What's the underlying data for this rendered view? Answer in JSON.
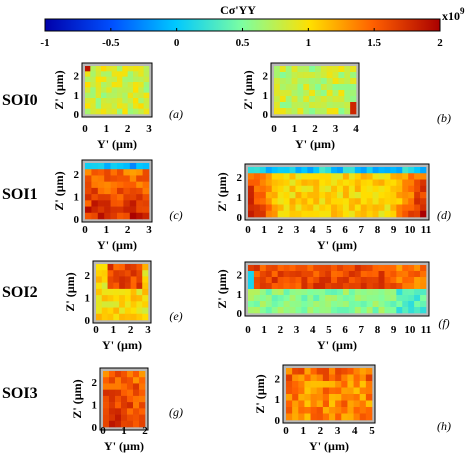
{
  "colorbar": {
    "label": "Cσ'YY",
    "exponent": "x10",
    "exponent_power": "9",
    "ticks": [
      "-1",
      "-0.5",
      "0",
      "0.5",
      "1",
      "1.5",
      "2"
    ],
    "tick_values": [
      -1,
      -0.5,
      0,
      0.5,
      1,
      1.5,
      2
    ],
    "range": [
      -1,
      2
    ],
    "colormap": [
      "#0000aa",
      "#0050ff",
      "#00c8ff",
      "#7dffa0",
      "#ffe000",
      "#ff6000",
      "#aa0000"
    ]
  },
  "rows": [
    "SOI0",
    "SOI1",
    "SOI2",
    "SOI3"
  ],
  "chart_data": [
    {
      "type": "heatmap",
      "panel": "(a)",
      "row": "SOI0",
      "xlabel": "Y' (µm)",
      "ylabel": "Z' (µm)",
      "xticks": [
        "0",
        "1",
        "2",
        "3"
      ],
      "yticks": [
        "0",
        "1",
        "2"
      ],
      "xlim": [
        0,
        3
      ],
      "ylim": [
        0,
        2.5
      ],
      "description": "Mostly uniform stress ~0.7-1.0, one high-stress cell at top-left corner",
      "value_range": [
        0.6,
        1.9
      ]
    },
    {
      "type": "heatmap",
      "panel": "(b)",
      "row": "SOI0",
      "xlabel": "Y' (µm)",
      "ylabel": "Z' (µm)",
      "xticks": [
        "0",
        "1",
        "2",
        "3",
        "4"
      ],
      "yticks": [
        "0",
        "1",
        "2"
      ],
      "xlim": [
        0,
        4
      ],
      "ylim": [
        0,
        2.5
      ],
      "value_range": [
        0.5,
        1.8
      ]
    },
    {
      "type": "heatmap",
      "panel": "(c)",
      "row": "SOI1",
      "xlabel": "Y' (µm)",
      "ylabel": "Z' (µm)",
      "xticks": [
        "0",
        "1",
        "2",
        "3"
      ],
      "yticks": [
        "0",
        "1",
        "2"
      ],
      "xlim": [
        0,
        3
      ],
      "ylim": [
        0,
        2.5
      ],
      "value_range": [
        -0.4,
        1.9
      ]
    },
    {
      "type": "heatmap",
      "panel": "(d)",
      "row": "SOI1",
      "xlabel": "Y' (µm)",
      "ylabel": "Z' (µm)",
      "xticks": [
        "0",
        "1",
        "2",
        "3",
        "4",
        "5",
        "6",
        "7",
        "8",
        "9",
        "10",
        "11"
      ],
      "yticks": [
        "0",
        "1",
        "2"
      ],
      "xlim": [
        0,
        11
      ],
      "ylim": [
        0,
        2.5
      ],
      "value_range": [
        -0.3,
        1.9
      ]
    },
    {
      "type": "heatmap",
      "panel": "(e)",
      "row": "SOI2",
      "xlabel": "Y' (µm)",
      "ylabel": "Z' (µm)",
      "xticks": [
        "0",
        "1",
        "2",
        "3"
      ],
      "yticks": [
        "0",
        "1",
        "2"
      ],
      "xlim": [
        0,
        3
      ],
      "ylim": [
        0,
        2.5
      ],
      "value_range": [
        0.6,
        1.9
      ]
    },
    {
      "type": "heatmap",
      "panel": "(f)",
      "row": "SOI2",
      "xlabel": "Y' (µm)",
      "ylabel": "Z' (µm)",
      "xticks": [
        "0",
        "1",
        "2",
        "3",
        "4",
        "5",
        "6",
        "7",
        "8",
        "9",
        "10",
        "11"
      ],
      "yticks": [
        "0",
        "1",
        "2"
      ],
      "xlim": [
        0,
        11
      ],
      "ylim": [
        0,
        2.5
      ],
      "value_range": [
        0.1,
        1.9
      ]
    },
    {
      "type": "heatmap",
      "panel": "(g)",
      "row": "SOI3",
      "xlabel": "Y' (µm)",
      "ylabel": "Z' (µm)",
      "xticks": [
        "0",
        "1",
        "2"
      ],
      "yticks": [
        "0",
        "1",
        "2"
      ],
      "xlim": [
        0,
        2
      ],
      "ylim": [
        0,
        2.5
      ],
      "value_range": [
        0.9,
        1.9
      ]
    },
    {
      "type": "heatmap",
      "panel": "(h)",
      "row": "SOI3",
      "xlabel": "Y' (µm)",
      "ylabel": "Z' (µm)",
      "xticks": [
        "0",
        "1",
        "2",
        "3",
        "4",
        "5"
      ],
      "yticks": [
        "0",
        "1",
        "2"
      ],
      "xlim": [
        0,
        5
      ],
      "ylim": [
        0,
        2.5
      ],
      "value_range": [
        0.9,
        1.9
      ]
    }
  ]
}
